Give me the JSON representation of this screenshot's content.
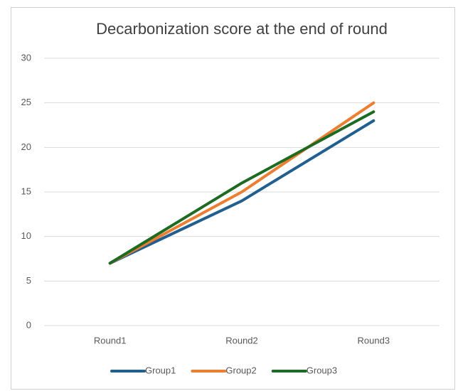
{
  "chart_data": {
    "type": "line",
    "title": "Decarbonization score at the end of round",
    "categories": [
      "Round1",
      "Round2",
      "Round3"
    ],
    "series": [
      {
        "name": "Group1",
        "color": "#215f8f",
        "values": [
          7,
          14,
          23
        ]
      },
      {
        "name": "Group2",
        "color": "#ed7d31",
        "values": [
          7,
          15,
          25
        ]
      },
      {
        "name": "Group3",
        "color": "#1d6b22",
        "values": [
          7,
          16,
          24
        ]
      }
    ],
    "ylim": [
      0,
      30
    ],
    "yticks": [
      0,
      5,
      10,
      15,
      20,
      25,
      30
    ],
    "grid": true,
    "legend": "bottom"
  }
}
